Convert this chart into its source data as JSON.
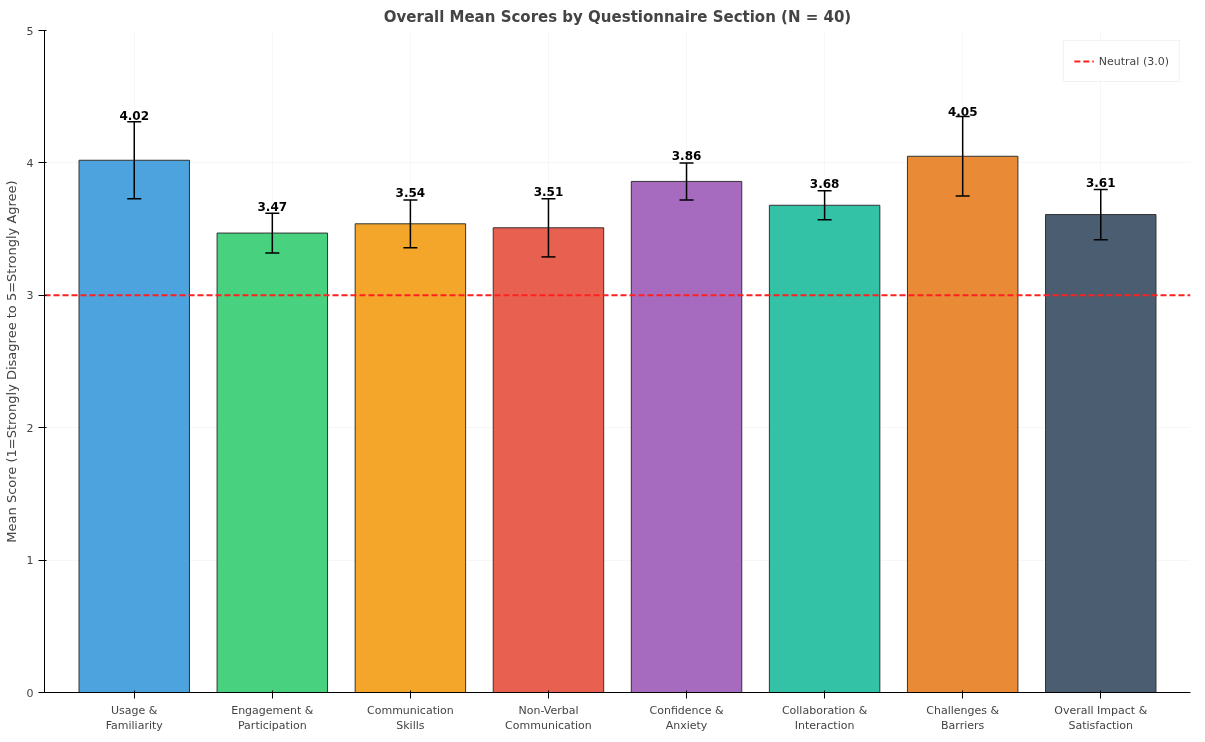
{
  "chart_data": {
    "type": "bar",
    "title": "Overall Mean Scores by Questionnaire Section (N = 40)",
    "ylabel": "Mean Score (1=Strongly Disagree to 5=Strongly Agree)",
    "categories": [
      "Usage & Familiarity",
      "Engagement & Participation",
      "Communication Skills",
      "Non-Verbal Communication",
      "Confidence & Anxiety",
      "Collaboration & Interaction",
      "Challenges & Barriers",
      "Overall Impact & Satisfaction"
    ],
    "values": [
      4.02,
      3.47,
      3.54,
      3.51,
      3.86,
      3.68,
      4.05,
      3.61
    ],
    "colors": [
      "#4ca3dd",
      "#48d17f",
      "#f4a62a",
      "#e8604f",
      "#a66bbe",
      "#33c2a5",
      "#e98b36",
      "#4b5d70"
    ],
    "errors": [
      0.29,
      0.15,
      0.18,
      0.22,
      0.14,
      0.11,
      0.3,
      0.19
    ],
    "data_labels": true,
    "ylim": [
      0,
      5
    ],
    "yticks": [
      0,
      1,
      2,
      3,
      4,
      5
    ],
    "ref_lines": [
      {
        "axis": "y",
        "value": 3.0,
        "label": "Neutral (3.0)",
        "color": "#ff2020",
        "line_style": "dashed"
      }
    ],
    "grid": true,
    "legend": "top right"
  }
}
